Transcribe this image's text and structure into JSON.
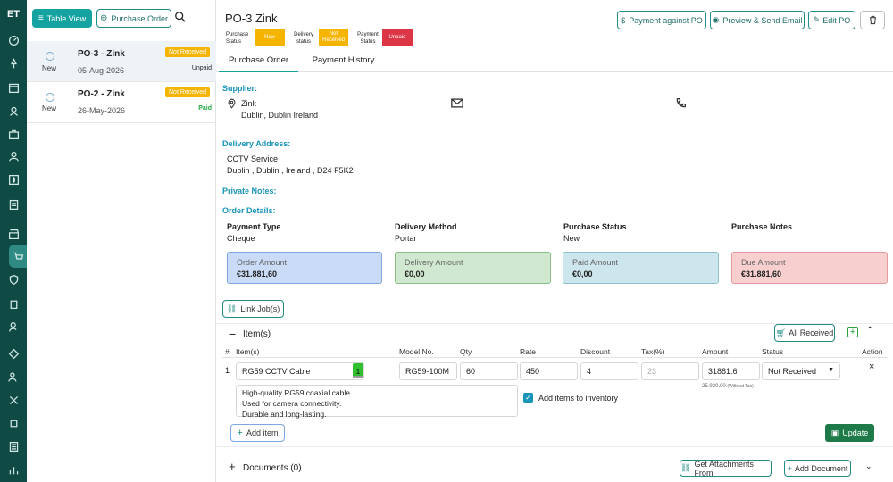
{
  "rail": {
    "logo": "ET"
  },
  "list": {
    "table_view_label": "Table View",
    "purchase_order_label": "Purchase Order",
    "items": [
      {
        "title": "PO-3 - Zink",
        "badge": "Not Received",
        "state": "New",
        "date": "05-Aug-2026",
        "payment": "Unpaid",
        "payment_color": "#333333"
      },
      {
        "title": "PO-2 - Zink",
        "badge": "Not Received",
        "state": "New",
        "date": "26-May-2026",
        "payment": "Paid",
        "payment_color": "#27a745"
      }
    ]
  },
  "header": {
    "title": "PO-3 Zink",
    "statuses": [
      {
        "label": "Purchase Status",
        "value": "New",
        "color": "#f5b400"
      },
      {
        "label": "Delivery status",
        "value": "Not Received",
        "color": "#f5b400"
      },
      {
        "label": "Payment Status",
        "value": "Unpaid",
        "color": "#dc3545"
      }
    ],
    "payment_against_po": "Payment against PO",
    "preview_send": "Preview & Send Email",
    "edit_po": "Edit PO"
  },
  "tabs": [
    "Purchase Order",
    "Payment History"
  ],
  "supplier": {
    "heading": "Supplier:",
    "name": "Zink",
    "address": "Dublin, Dublin Ireland"
  },
  "delivery": {
    "heading": "Delivery Address:",
    "line1": "CCTV Service",
    "line2": "Dublin , Dublin , Ireland , D24 F5K2"
  },
  "private_notes": {
    "heading": "Private Notes:"
  },
  "order_details": {
    "heading": "Order Details:",
    "fields": [
      {
        "label": "Payment Type",
        "value": "Cheque"
      },
      {
        "label": "Delivery Method",
        "value": "Portar"
      },
      {
        "label": "Purchase Status",
        "value": "New"
      },
      {
        "label": "Purchase Notes",
        "value": ""
      }
    ],
    "amounts": [
      {
        "label": "Order Amount",
        "value": "€31.881,60",
        "bg": "#c9dbf7",
        "border": "#7ea6e0"
      },
      {
        "label": "Delivery Amount",
        "value": "€0,00",
        "bg": "#cfe8cf",
        "border": "#88c088"
      },
      {
        "label": "Paid Amount",
        "value": "€0,00",
        "bg": "#cde5ec",
        "border": "#8fc0cf"
      },
      {
        "label": "Due Amount",
        "value": "€31.881,60",
        "bg": "#f8cfcf",
        "border": "#e49a9a"
      }
    ]
  },
  "link_jobs": "Link Job(s)",
  "items_section": {
    "title": "Item(s)",
    "all_received": "All Received",
    "headers": [
      "#",
      "Item(s)",
      "Model No.",
      "Qty",
      "Rate",
      "Discount",
      "Tax(%)",
      "Amount",
      "Status",
      "Action"
    ],
    "row": {
      "num": "1",
      "item": "RG59 CCTV Cable",
      "stock": "1",
      "model": "RG59-100M",
      "qty": "60",
      "rate": "450",
      "discount": "4",
      "tax": "23",
      "amount": "31881.6",
      "amount_sub": "25.920,00",
      "amount_sub_note": "(Without Tax)",
      "status": "Not Received",
      "desc1": "High-quality RG59 coaxial cable.",
      "desc2": "Used for camera connectivity.",
      "desc3": "Durable and long-lasting.",
      "add_inventory": "Add items to inventory"
    },
    "add_item": "Add item",
    "update": "Update"
  },
  "documents": {
    "title": "Documents (0)",
    "get_attachments": "Get Attachments From",
    "add_document": "Add Document"
  }
}
